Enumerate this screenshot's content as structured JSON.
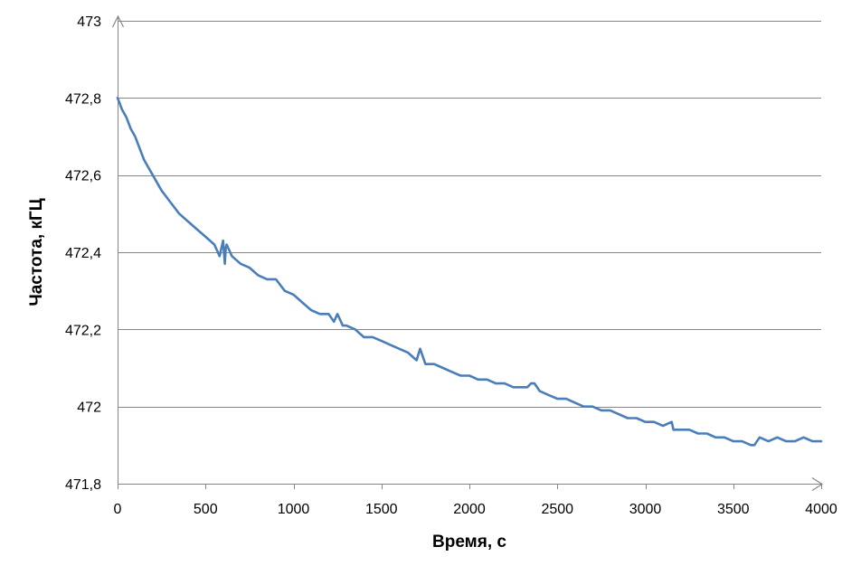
{
  "chart_data": {
    "type": "line",
    "title": "",
    "xlabel": "Время, с",
    "ylabel": "Частота, кГЦ",
    "xlim": [
      0,
      4000
    ],
    "ylim": [
      471.8,
      473
    ],
    "x_ticks": [
      0,
      500,
      1000,
      1500,
      2000,
      2500,
      3000,
      3500,
      4000
    ],
    "x_tick_labels": [
      "0",
      "500",
      "1000",
      "1500",
      "2000",
      "2500",
      "3000",
      "3500",
      "4000"
    ],
    "y_ticks": [
      471.8,
      472.0,
      472.2,
      472.4,
      472.6,
      472.8,
      473.0
    ],
    "y_tick_labels": [
      "471,8",
      "472",
      "472,2",
      "472,4",
      "472,6",
      "472,8",
      "473"
    ],
    "grid": {
      "horizontal": true,
      "vertical": false
    },
    "legend": "none",
    "series": [
      {
        "color": "#4a7ebb",
        "x": [
          0,
          25,
          50,
          75,
          100,
          125,
          150,
          175,
          200,
          250,
          300,
          350,
          400,
          450,
          500,
          550,
          580,
          600,
          610,
          615,
          620,
          640,
          650,
          700,
          750,
          800,
          850,
          900,
          950,
          1000,
          1050,
          1100,
          1150,
          1200,
          1230,
          1250,
          1280,
          1300,
          1350,
          1400,
          1450,
          1500,
          1550,
          1600,
          1650,
          1700,
          1720,
          1750,
          1800,
          1850,
          1900,
          1950,
          2000,
          2050,
          2100,
          2150,
          2200,
          2250,
          2300,
          2330,
          2350,
          2370,
          2400,
          2450,
          2500,
          2550,
          2600,
          2650,
          2700,
          2750,
          2800,
          2850,
          2900,
          2950,
          3000,
          3050,
          3100,
          3150,
          3160,
          3200,
          3250,
          3300,
          3350,
          3400,
          3450,
          3500,
          3550,
          3600,
          3620,
          3650,
          3700,
          3750,
          3800,
          3850,
          3900,
          3950,
          4000
        ],
        "y": [
          472.8,
          472.77,
          472.75,
          472.72,
          472.7,
          472.67,
          472.64,
          472.62,
          472.6,
          472.56,
          472.53,
          472.5,
          472.48,
          472.46,
          472.44,
          472.42,
          472.39,
          472.43,
          472.37,
          472.41,
          472.42,
          472.4,
          472.39,
          472.37,
          472.36,
          472.34,
          472.33,
          472.33,
          472.3,
          472.29,
          472.27,
          472.25,
          472.24,
          472.24,
          472.22,
          472.24,
          472.21,
          472.21,
          472.2,
          472.18,
          472.18,
          472.17,
          472.16,
          472.15,
          472.14,
          472.12,
          472.15,
          472.11,
          472.11,
          472.1,
          472.09,
          472.08,
          472.08,
          472.07,
          472.07,
          472.06,
          472.06,
          472.05,
          472.05,
          472.05,
          472.06,
          472.06,
          472.04,
          472.03,
          472.02,
          472.02,
          472.01,
          472.0,
          472.0,
          471.99,
          471.99,
          471.98,
          471.97,
          471.97,
          471.96,
          471.96,
          471.95,
          471.96,
          471.94,
          471.94,
          471.94,
          471.93,
          471.93,
          471.92,
          471.92,
          471.91,
          471.91,
          471.9,
          471.9,
          471.92,
          471.91,
          471.92,
          471.91,
          471.91,
          471.92,
          471.91,
          471.91
        ]
      }
    ]
  }
}
